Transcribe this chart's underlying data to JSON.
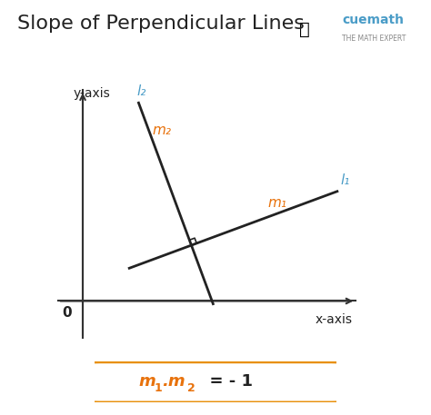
{
  "title": "Slope of Perpendicular Lines",
  "title_fontsize": 16,
  "bg_color": "#ffffff",
  "axis_color": "#333333",
  "line1_color": "#222222",
  "line2_color": "#222222",
  "label_color_orange": "#E8720C",
  "label_color_blue": "#4A9CC7",
  "formula_box_color": "#E8900C",
  "formula_text_color": "#E8720C",
  "formula_eq_color": "#222222",
  "x_axis_label": "x-axis",
  "y_axis_label": "y-axis",
  "origin_label": "0",
  "line1_label": "l₁",
  "line2_label": "l₂",
  "m1_label": "m₁",
  "m2_label": "m₂",
  "formula": "m₁.m₂   = - 1",
  "cuemath_text": "cuemath",
  "cuemath_sub": "THE MATH EXPERT"
}
